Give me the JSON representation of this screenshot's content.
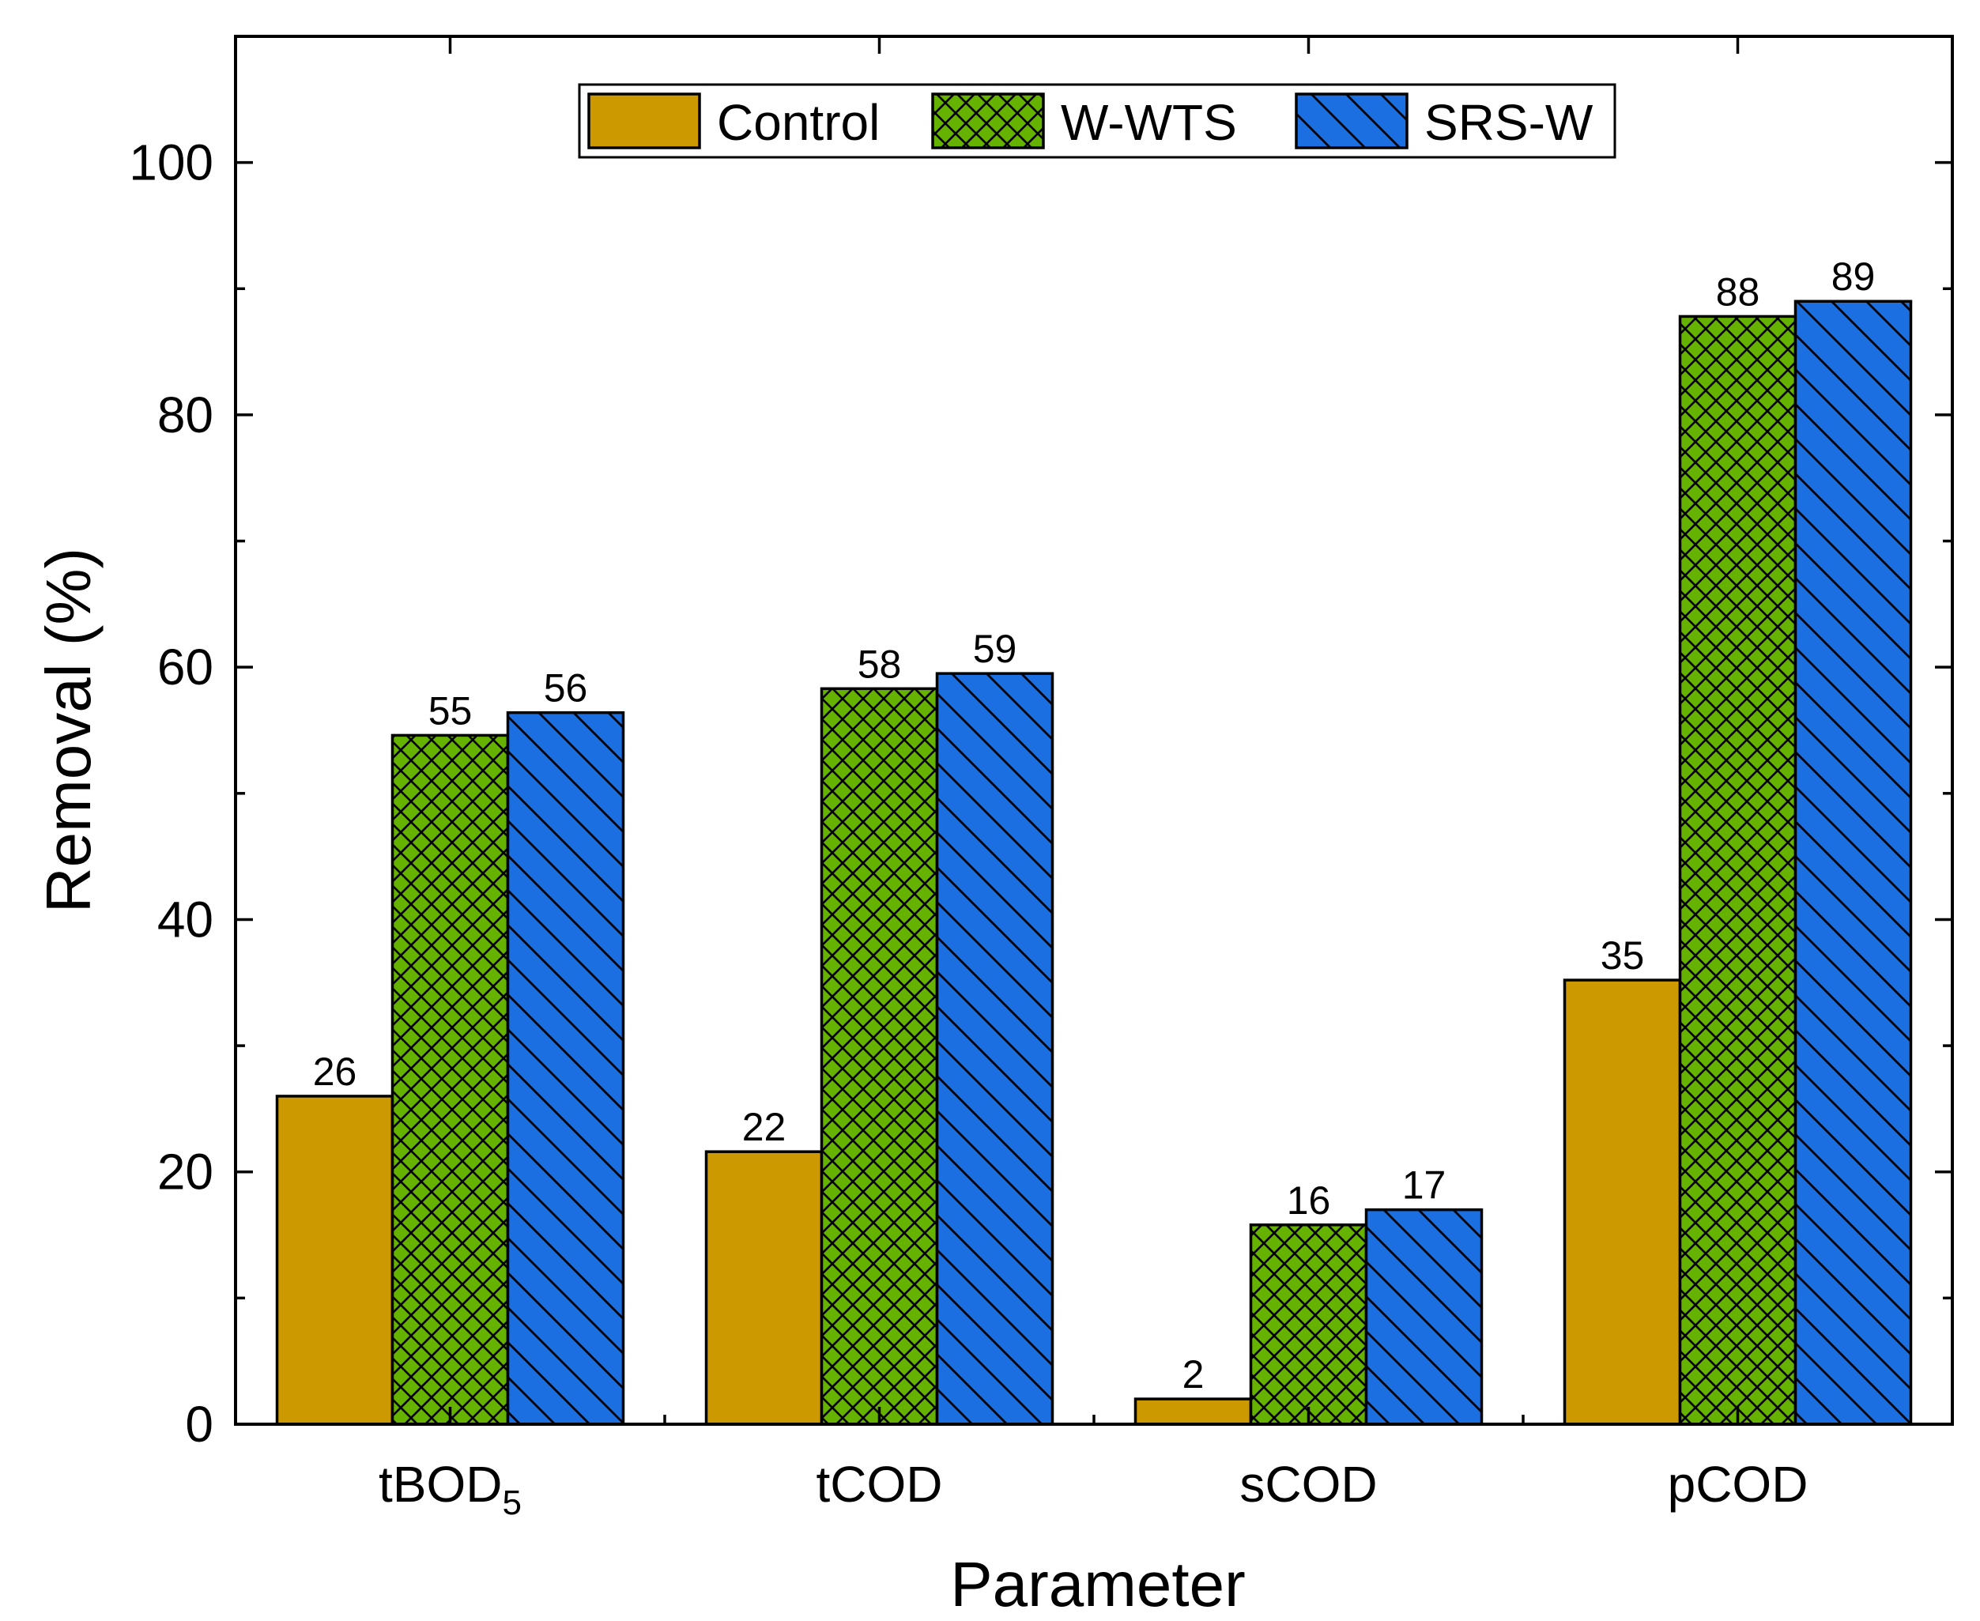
{
  "chart_data": {
    "type": "bar",
    "categories": [
      "tBOD",
      "tCOD",
      "sCOD",
      "pCOD"
    ],
    "category_subscripts": [
      "5",
      "",
      "",
      ""
    ],
    "series": [
      {
        "name": "Control",
        "values": [
          26,
          21.6,
          2,
          35.2
        ],
        "labels": [
          "26",
          "22",
          "2",
          "35"
        ],
        "color": "#CC9900",
        "pattern": "none"
      },
      {
        "name": "W-WTS",
        "values": [
          54.6,
          58.3,
          15.8,
          87.8
        ],
        "labels": [
          "55",
          "58",
          "16",
          "88"
        ],
        "color": "#66B200",
        "pattern": "crosshatch"
      },
      {
        "name": "SRS-W",
        "values": [
          56.4,
          59.5,
          17,
          89
        ],
        "labels": [
          "56",
          "59",
          "17",
          "89"
        ],
        "color": "#1B6FE0",
        "pattern": "back-diagonal"
      }
    ],
    "xlabel": "Parameter",
    "ylabel": "Removal (%)",
    "ylim": [
      0,
      110
    ],
    "yticks": [
      0,
      20,
      40,
      60,
      80,
      100
    ],
    "ytick_labels": [
      "0",
      "20",
      "40",
      "60",
      "80",
      "100"
    ],
    "grid": false,
    "legend_position": "top-center"
  }
}
